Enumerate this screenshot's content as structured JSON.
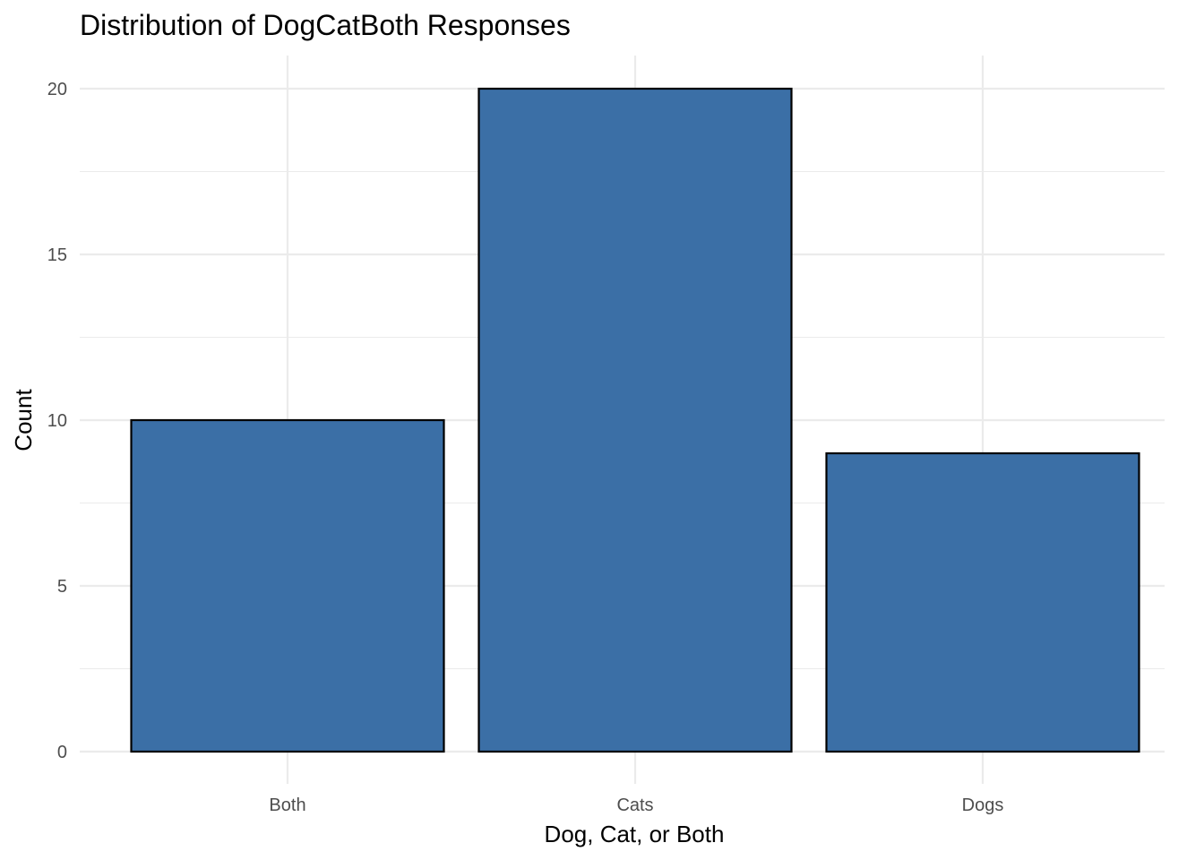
{
  "chart_data": {
    "type": "bar",
    "title": "Distribution of DogCatBoth Responses",
    "xlabel": "Dog, Cat, or Both",
    "ylabel": "Count",
    "categories": [
      "Both",
      "Cats",
      "Dogs"
    ],
    "values": [
      10,
      20,
      9
    ],
    "ylim": [
      0,
      20
    ],
    "yticks": [
      0,
      5,
      10,
      15,
      20
    ],
    "grid": true,
    "legend": "none",
    "colors": {
      "bar_fill": "#3B6FA6",
      "bar_outline": "#000000",
      "grid": "#EBEBEB"
    }
  }
}
